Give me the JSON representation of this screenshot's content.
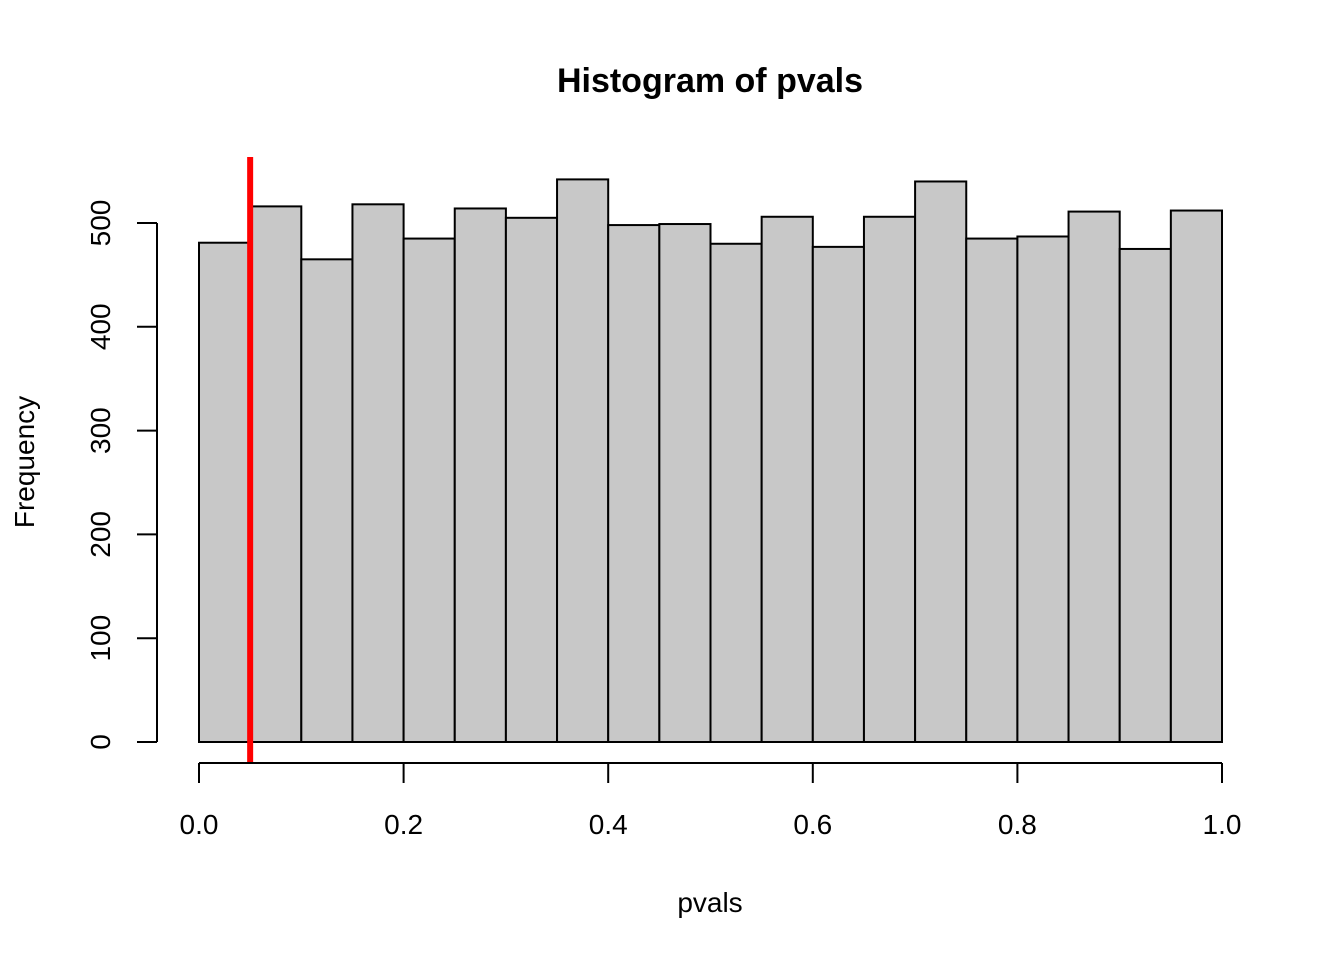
{
  "chart_data": {
    "type": "bar",
    "title": "Histogram of pvals",
    "xlabel": "pvals",
    "ylabel": "Frequency",
    "bin_edges": [
      0.0,
      0.05,
      0.1,
      0.15,
      0.2,
      0.25,
      0.3,
      0.35,
      0.4,
      0.45,
      0.5,
      0.55,
      0.6,
      0.65,
      0.7,
      0.75,
      0.8,
      0.85,
      0.9,
      0.95,
      1.0
    ],
    "values": [
      481,
      516,
      465,
      518,
      485,
      514,
      505,
      542,
      498,
      499,
      480,
      506,
      477,
      506,
      540,
      485,
      487,
      511,
      475,
      512
    ],
    "xlim": [
      0.0,
      1.0
    ],
    "ylim": [
      0,
      560
    ],
    "x_ticks": [
      "0.0",
      "0.2",
      "0.4",
      "0.6",
      "0.8",
      "1.0"
    ],
    "y_ticks": [
      "0",
      "100",
      "200",
      "300",
      "400",
      "500"
    ],
    "bar_color": "#c8c8c8",
    "reference_line": {
      "x": 0.05,
      "color": "#ff0000"
    },
    "grid": false
  }
}
